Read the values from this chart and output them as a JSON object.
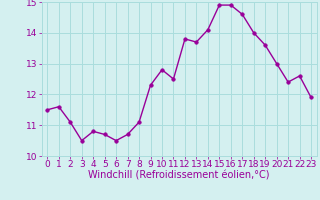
{
  "x": [
    0,
    1,
    2,
    3,
    4,
    5,
    6,
    7,
    8,
    9,
    10,
    11,
    12,
    13,
    14,
    15,
    16,
    17,
    18,
    19,
    20,
    21,
    22,
    23
  ],
  "y": [
    11.5,
    11.6,
    11.1,
    10.5,
    10.8,
    10.7,
    10.5,
    10.7,
    11.1,
    12.3,
    12.8,
    12.5,
    13.8,
    13.7,
    14.1,
    14.9,
    14.9,
    14.6,
    14.0,
    13.6,
    13.0,
    12.4,
    12.6,
    11.9
  ],
  "line_color": "#990099",
  "marker_color": "#990099",
  "bg_color": "#d4f0f0",
  "grid_color": "#aadddd",
  "xlabel": "Windchill (Refroidissement éolien,°C)",
  "ylim": [
    10,
    15
  ],
  "xlim_min": -0.5,
  "xlim_max": 23.5,
  "yticks": [
    10,
    11,
    12,
    13,
    14,
    15
  ],
  "xticks": [
    0,
    1,
    2,
    3,
    4,
    5,
    6,
    7,
    8,
    9,
    10,
    11,
    12,
    13,
    14,
    15,
    16,
    17,
    18,
    19,
    20,
    21,
    22,
    23
  ],
  "xlabel_fontsize": 7,
  "tick_fontsize": 6.5,
  "line_width": 1.0,
  "marker_size": 2.5
}
